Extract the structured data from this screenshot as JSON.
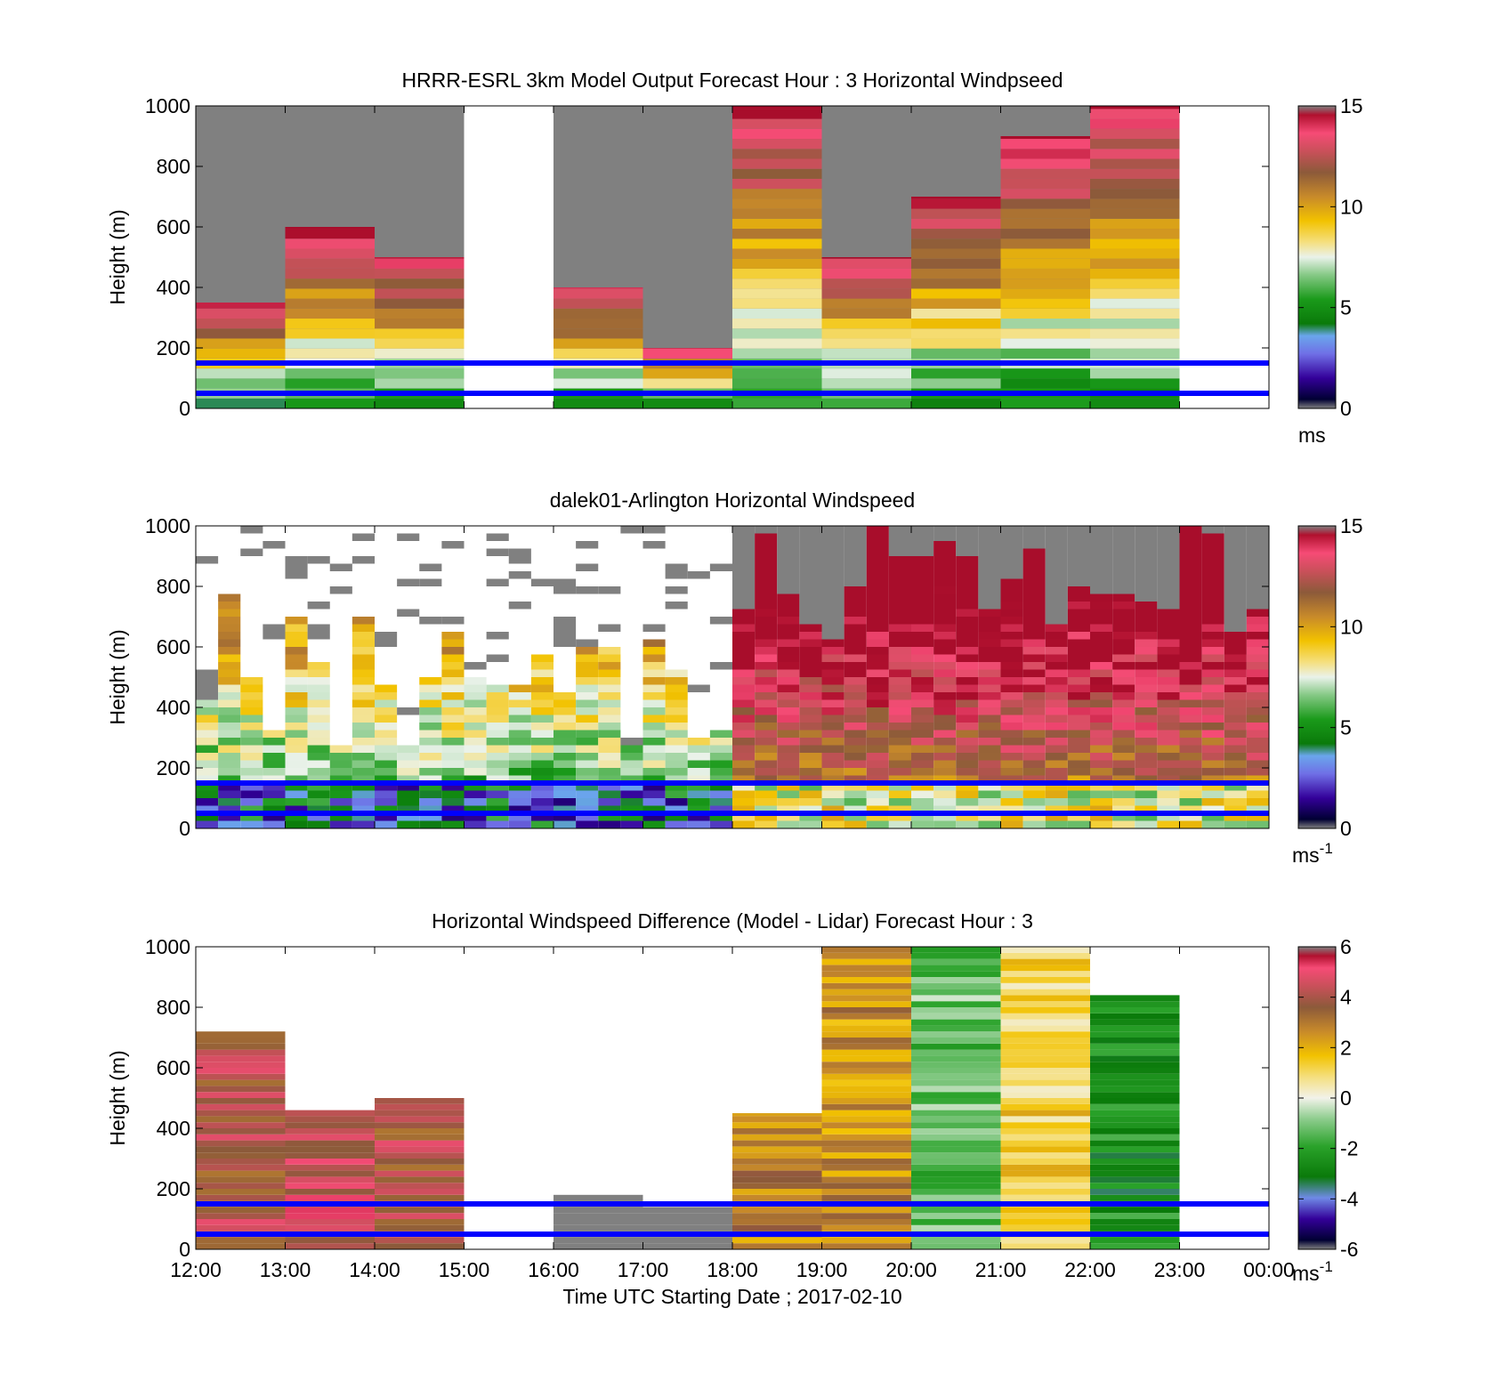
{
  "chart_data": [
    {
      "type": "heatmap",
      "title": "HRRR-ESRL 3km Model Output   Forecast Hour : 3 Horizontal Windpseed",
      "ylabel": "Height (m)",
      "xlabel": "",
      "ylim": [
        0,
        1000
      ],
      "yticks": [
        "0",
        "200",
        "400",
        "600",
        "800",
        "1000"
      ],
      "xticks": [],
      "colorbar": {
        "min": 0,
        "max": 15,
        "ticks": [
          "0",
          "5",
          "10",
          "15"
        ],
        "unit": "ms"
      },
      "lines": [
        50,
        150
      ],
      "hours": [
        "12:00",
        "13:00",
        "14:00",
        "15:00",
        "16:00",
        "17:00",
        "18:00",
        "19:00",
        "20:00",
        "21:00",
        "22:00",
        "23:00"
      ],
      "profile_tops_m": [
        350,
        600,
        500,
        null,
        400,
        200,
        1000,
        500,
        700,
        900,
        1000,
        null
      ],
      "grid": false
    },
    {
      "type": "heatmap",
      "title": "dalek01-Arlington  Horizontal Windspeed",
      "ylabel": "Height (m)",
      "xlabel": "",
      "ylim": [
        0,
        1000
      ],
      "yticks": [
        "0",
        "200",
        "400",
        "600",
        "800",
        "1000"
      ],
      "xticks": [],
      "colorbar": {
        "min": 0,
        "max": 15,
        "ticks": [
          "0",
          "5",
          "10",
          "15"
        ],
        "unit": "ms",
        "unit_sup": "-1"
      },
      "lines": [
        50,
        150
      ],
      "grid": false
    },
    {
      "type": "heatmap",
      "title": "Horizontal Windspeed Difference (Model - Lidar) Forecast Hour : 3",
      "ylabel": "Height (m)",
      "xlabel": "Time UTC  Starting Date ; 2017-02-10",
      "ylim": [
        0,
        1000
      ],
      "yticks": [
        "0",
        "200",
        "400",
        "600",
        "800",
        "1000"
      ],
      "xticks": [
        "12:00",
        "13:00",
        "14:00",
        "15:00",
        "16:00",
        "17:00",
        "18:00",
        "19:00",
        "20:00",
        "21:00",
        "22:00",
        "23:00",
        "00:00"
      ],
      "colorbar": {
        "min": -6,
        "max": 6,
        "ticks": [
          "-6",
          "-4",
          "-2",
          "0",
          "2",
          "4",
          "6"
        ],
        "unit": "ms",
        "unit_sup": "-1"
      },
      "lines": [
        50,
        150
      ],
      "grid": false
    }
  ],
  "colors": {
    "line": "#0000ff",
    "missing": "#808080"
  }
}
